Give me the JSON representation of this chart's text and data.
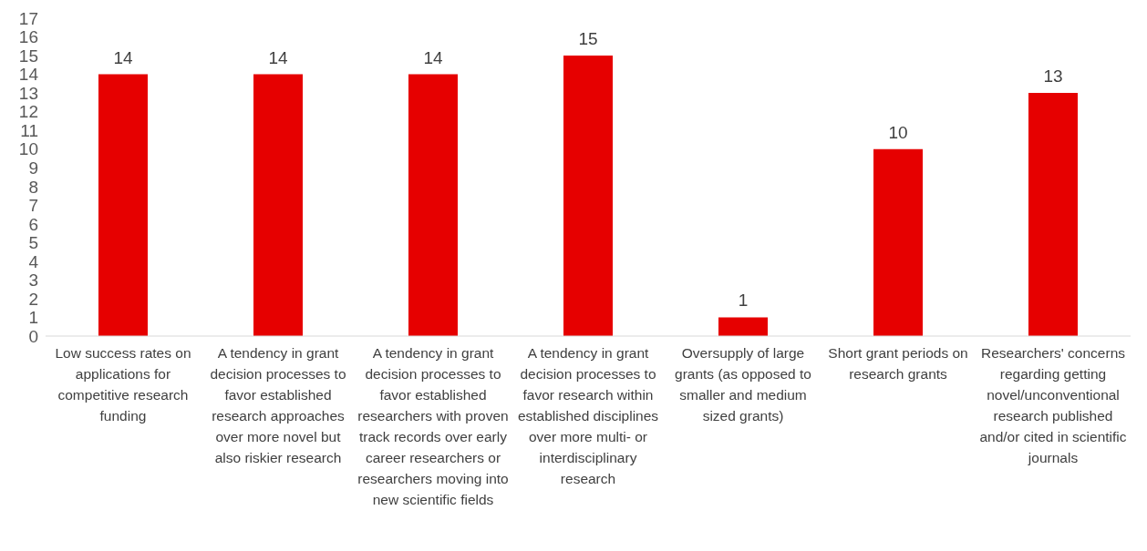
{
  "chart_data": {
    "type": "bar",
    "categories": [
      "Low success rates on applications for competitive research funding",
      "A tendency in grant decision processes to favor established research approaches over more novel but also riskier research",
      "A tendency in grant decision processes to favor established researchers with proven track records over early career researchers or researchers moving into new scientific fields",
      "A tendency in grant decision processes to favor research within established disciplines over more multi- or interdisciplinary research",
      "Oversupply of large grants (as opposed to smaller and medium sized grants)",
      "Short grant periods on research grants",
      "Researchers' concerns regarding getting novel/unconventional research published and/or cited in scientific journals"
    ],
    "values": [
      14,
      14,
      14,
      15,
      1,
      10,
      13
    ],
    "color": "#e60000",
    "ylim": [
      0,
      17
    ],
    "yticks": [
      0,
      1,
      2,
      3,
      4,
      5,
      6,
      7,
      8,
      9,
      10,
      11,
      12,
      13,
      14,
      15,
      16,
      17
    ],
    "data_labels": true,
    "grid": false,
    "legend": false
  }
}
